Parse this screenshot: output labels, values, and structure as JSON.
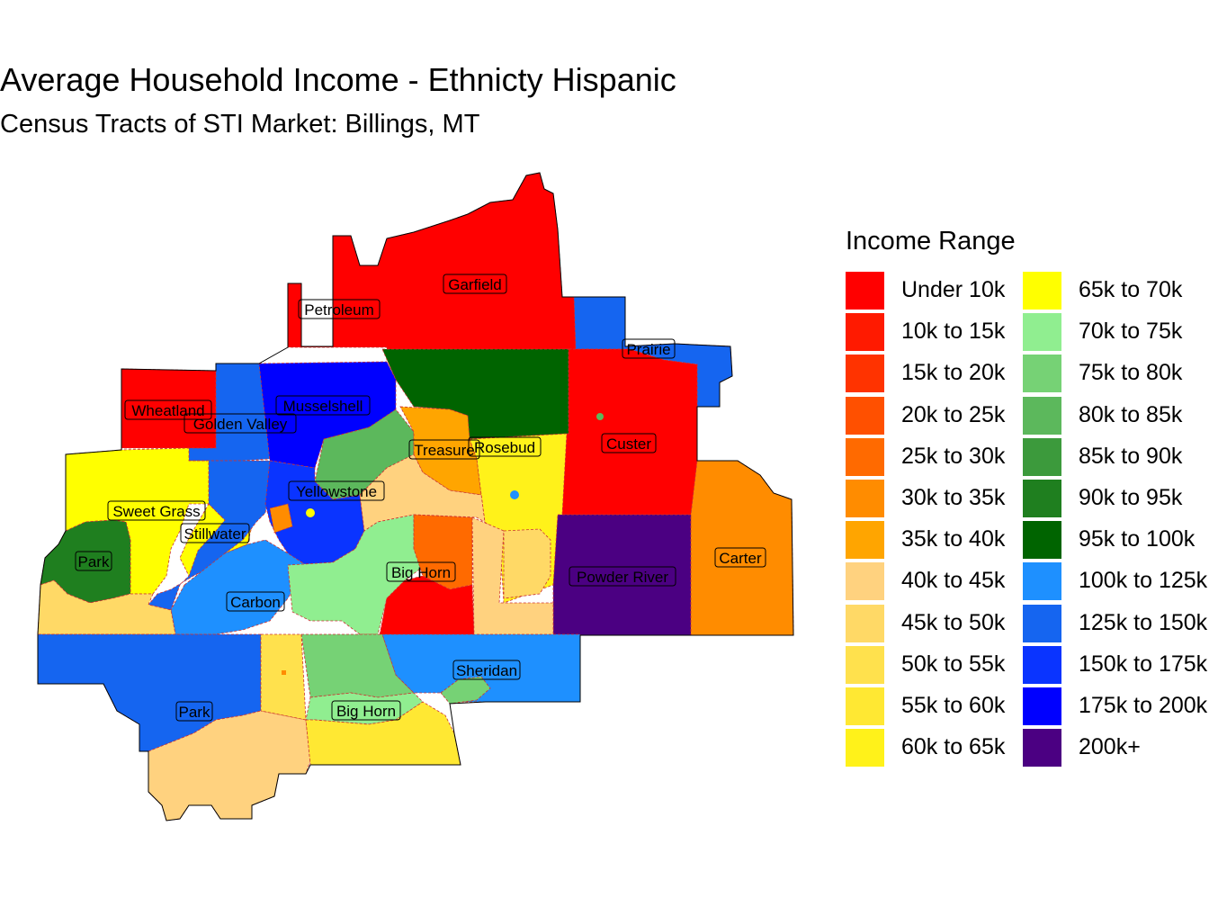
{
  "title": "Average Household Income - Ethnicty Hispanic",
  "subtitle": "Census Tracts of STI Market: Billings, MT",
  "legend": {
    "title": "Income Range",
    "items": [
      {
        "label": "Under 10k",
        "color": "#FF0000"
      },
      {
        "label": "10k to 15k",
        "color": "#FF1A00"
      },
      {
        "label": "15k to 20k",
        "color": "#FF3300"
      },
      {
        "label": "20k to 25k",
        "color": "#FF5000"
      },
      {
        "label": "25k to 30k",
        "color": "#FF6A00"
      },
      {
        "label": "30k to 35k",
        "color": "#FF8C00"
      },
      {
        "label": "35k to 40k",
        "color": "#FFA500"
      },
      {
        "label": "40k to 45k",
        "color": "#FFD27F"
      },
      {
        "label": "45k to 50k",
        "color": "#FFD966"
      },
      {
        "label": "50k to 55k",
        "color": "#FFE14D"
      },
      {
        "label": "55k to 60k",
        "color": "#FFE833"
      },
      {
        "label": "60k to 65k",
        "color": "#FFF21A"
      },
      {
        "label": "65k to 70k",
        "color": "#FFFF00"
      },
      {
        "label": "70k to 75k",
        "color": "#90EE90"
      },
      {
        "label": "75k to 80k",
        "color": "#76D275"
      },
      {
        "label": "80k to 85k",
        "color": "#5CB85C"
      },
      {
        "label": "85k to 90k",
        "color": "#3C9A3C"
      },
      {
        "label": "90k to 95k",
        "color": "#1F7F1F"
      },
      {
        "label": "95k to 100k",
        "color": "#006400"
      },
      {
        "label": "100k to 125k",
        "color": "#1E90FF"
      },
      {
        "label": "125k to 150k",
        "color": "#1565F0"
      },
      {
        "label": "150k to 175k",
        "color": "#0A34FF"
      },
      {
        "label": "175k to 200k",
        "color": "#0000FF"
      },
      {
        "label": "200k+",
        "color": "#4B0082"
      }
    ]
  },
  "counties": [
    {
      "name": "Garfield"
    },
    {
      "name": "Petroleum"
    },
    {
      "name": "Prairie"
    },
    {
      "name": "Wheatland"
    },
    {
      "name": "Musselshell"
    },
    {
      "name": "Golden Valley"
    },
    {
      "name": "Treasure"
    },
    {
      "name": "Rosebud"
    },
    {
      "name": "Custer"
    },
    {
      "name": "Sweet Grass"
    },
    {
      "name": "Yellowstone"
    },
    {
      "name": "Stillwater"
    },
    {
      "name": "Park"
    },
    {
      "name": "Carter"
    },
    {
      "name": "Big Horn"
    },
    {
      "name": "Powder River"
    },
    {
      "name": "Carbon"
    },
    {
      "name": "Sheridan"
    },
    {
      "name": "Park"
    },
    {
      "name": "Big Horn"
    }
  ]
}
